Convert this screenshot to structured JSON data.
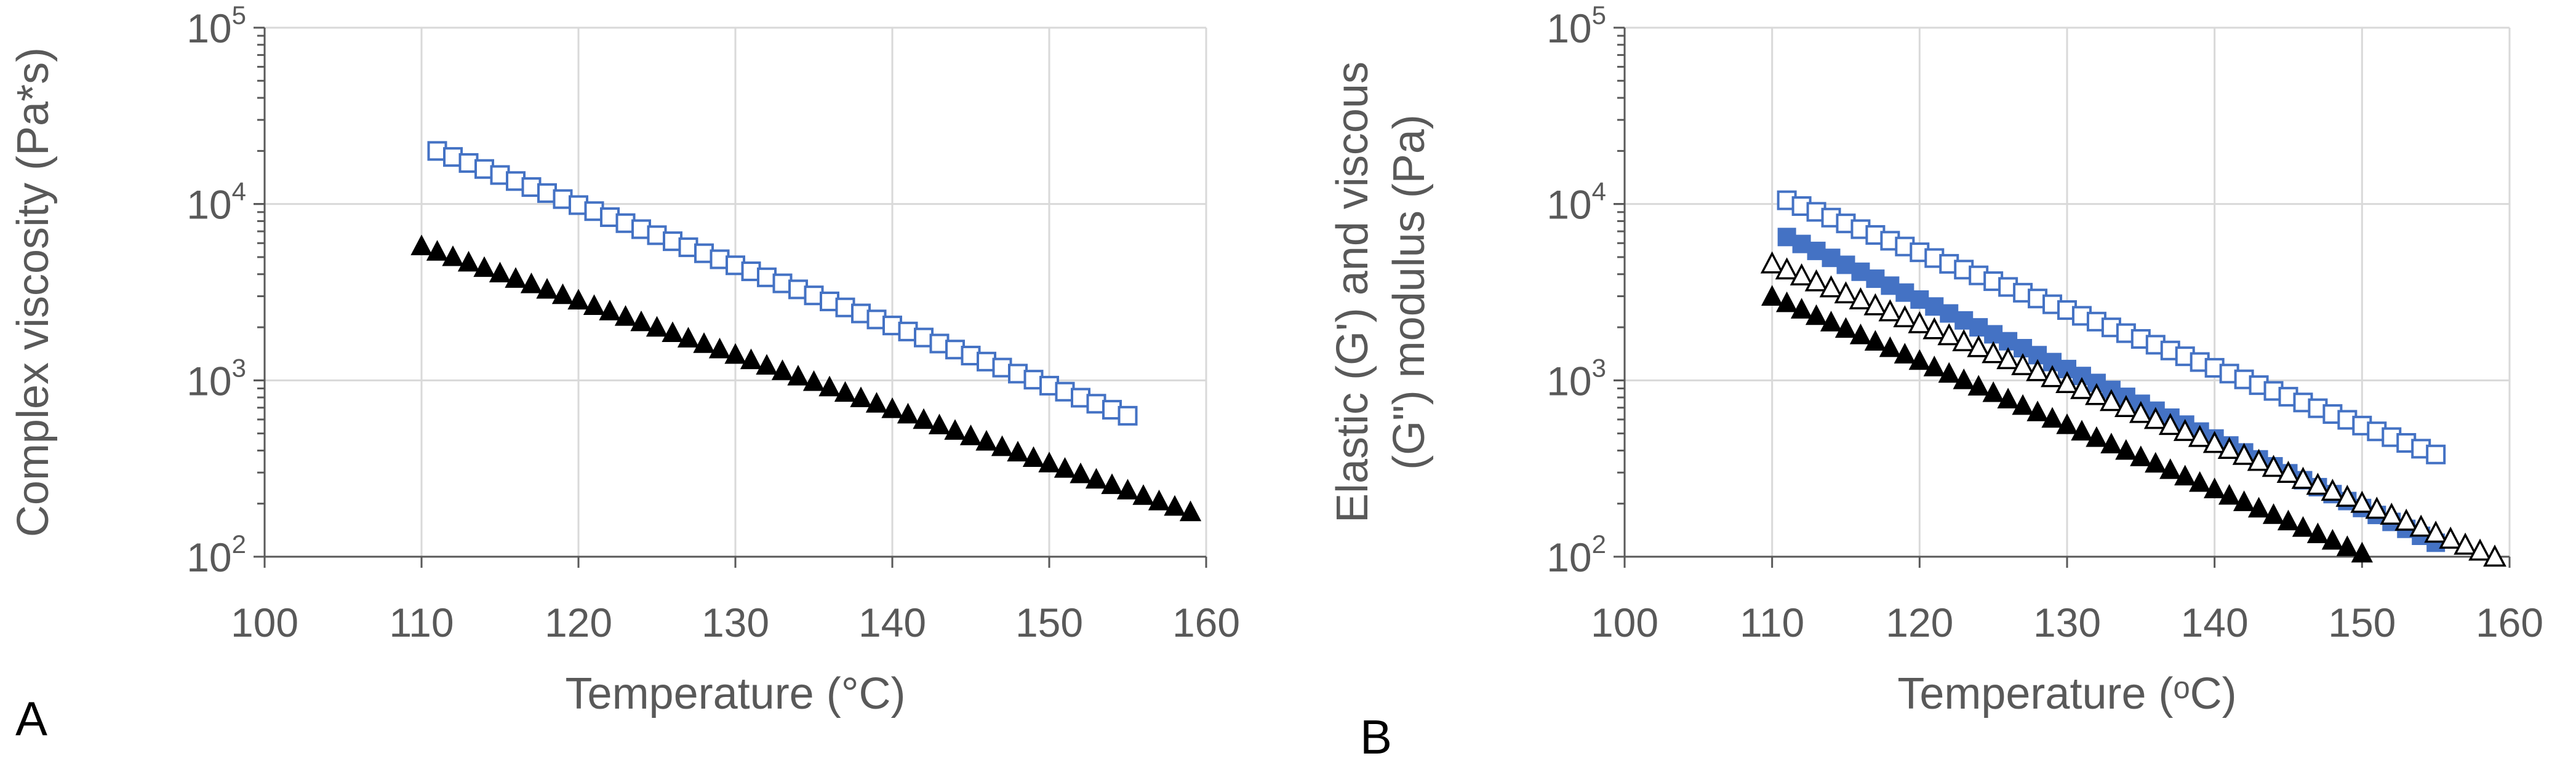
{
  "colors": {
    "blue": "#4472C4",
    "black": "#000000",
    "grid": "#D9D9D9",
    "axis": "#595959",
    "text": "#595959"
  },
  "chart_data": [
    {
      "type": "scatter",
      "panel_label": "A",
      "xlabel": "Temperature (°C)",
      "ylabel_lines": [
        "Complex viscosity (Pa*s)"
      ],
      "xlim": [
        100,
        160
      ],
      "ylim": [
        100,
        100000
      ],
      "yscale": "log",
      "xticks": [
        100,
        110,
        120,
        130,
        140,
        150,
        160
      ],
      "yticks": [
        {
          "value": 100,
          "base": "10",
          "exp": "2"
        },
        {
          "value": 1000,
          "base": "10",
          "exp": "3"
        },
        {
          "value": 10000,
          "base": "10",
          "exp": "4"
        },
        {
          "value": 100000,
          "base": "10",
          "exp": "5"
        }
      ],
      "grid": true,
      "series": [
        {
          "name": "open squares",
          "marker": "square-open",
          "color": "#4472C4",
          "x_start": 111,
          "x_end": 155,
          "step": 1,
          "y_start": 20000,
          "y_end": 630
        },
        {
          "name": "filled triangles",
          "marker": "triangle-filled",
          "color": "#000000",
          "x_start": 110,
          "x_end": 159,
          "step": 1,
          "y_start": 5800,
          "y_end": 180
        }
      ]
    },
    {
      "type": "scatter",
      "panel_label": "B",
      "xlabel": "Temperature (ᵒC)",
      "ylabel_lines": [
        "Elastic (G') and viscous",
        "(G\") modulus (Pa)"
      ],
      "xlim": [
        100,
        160
      ],
      "ylim": [
        100,
        100000
      ],
      "yscale": "log",
      "xticks": [
        100,
        110,
        120,
        130,
        140,
        150,
        160
      ],
      "yticks": [
        {
          "value": 100,
          "base": "10",
          "exp": "2"
        },
        {
          "value": 1000,
          "base": "10",
          "exp": "3"
        },
        {
          "value": 10000,
          "base": "10",
          "exp": "4"
        },
        {
          "value": 100000,
          "base": "10",
          "exp": "5"
        }
      ],
      "grid": true,
      "series": [
        {
          "name": "open squares",
          "marker": "square-open",
          "color": "#4472C4",
          "x_start": 111,
          "x_end": 155,
          "step": 1,
          "y_start": 10500,
          "y_end": 380
        },
        {
          "name": "filled squares",
          "marker": "square-filled",
          "color": "#4472C4",
          "x_start": 111,
          "x_end": 155,
          "step": 1,
          "y_start": 6500,
          "y_end": 120
        },
        {
          "name": "open triangles",
          "marker": "triangle-open",
          "color": "#000000",
          "x_start": 110,
          "x_end": 159,
          "step": 1,
          "y_start": 4600,
          "y_end": 100
        },
        {
          "name": "filled triangles",
          "marker": "triangle-filled",
          "color": "#000000",
          "x_start": 110,
          "x_end": 150,
          "step": 1,
          "y_start": 3000,
          "y_end": 105
        }
      ]
    }
  ]
}
